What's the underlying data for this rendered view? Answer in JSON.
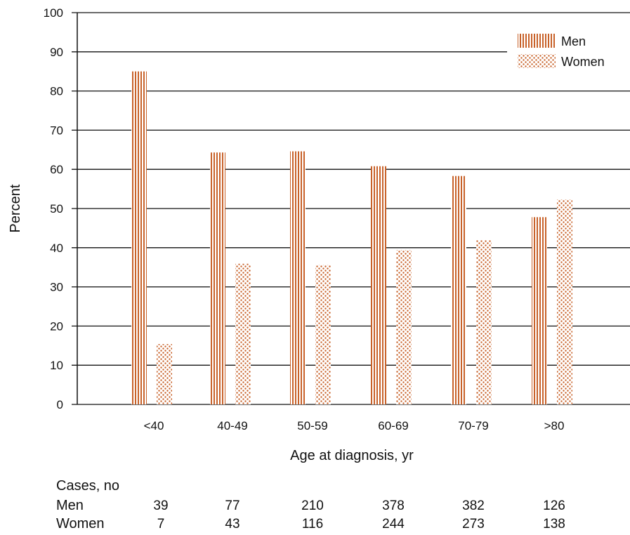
{
  "chart_data": {
    "type": "bar",
    "title": "",
    "xlabel": "Age at diagnosis, yr",
    "ylabel": "Percent",
    "ylim": [
      0,
      100
    ],
    "yticks": [
      "0",
      "10",
      "20",
      "30",
      "40",
      "50",
      "60",
      "70",
      "80",
      "90",
      "100"
    ],
    "categories": [
      "<40",
      "40-49",
      "50-59",
      "60-69",
      "70-79",
      ">80"
    ],
    "series": [
      {
        "name": "Men",
        "values": [
          85,
          64.3,
          64.6,
          60.8,
          58.3,
          47.8
        ],
        "pattern": "vertical-lines"
      },
      {
        "name": "Women",
        "values": [
          15.4,
          35.9,
          35.6,
          39.4,
          41.9,
          52.3
        ],
        "pattern": "dots"
      }
    ],
    "grid": true,
    "legend_position": "top-right",
    "colors": {
      "bar": "#c8622a",
      "grid": "#111111"
    }
  },
  "cases": {
    "title": "Cases, no",
    "rows": [
      {
        "label": "Men",
        "values": [
          "39",
          "77",
          "210",
          "378",
          "382",
          "126"
        ]
      },
      {
        "label": "Women",
        "values": [
          "7",
          "43",
          "116",
          "244",
          "273",
          "138"
        ]
      }
    ]
  }
}
